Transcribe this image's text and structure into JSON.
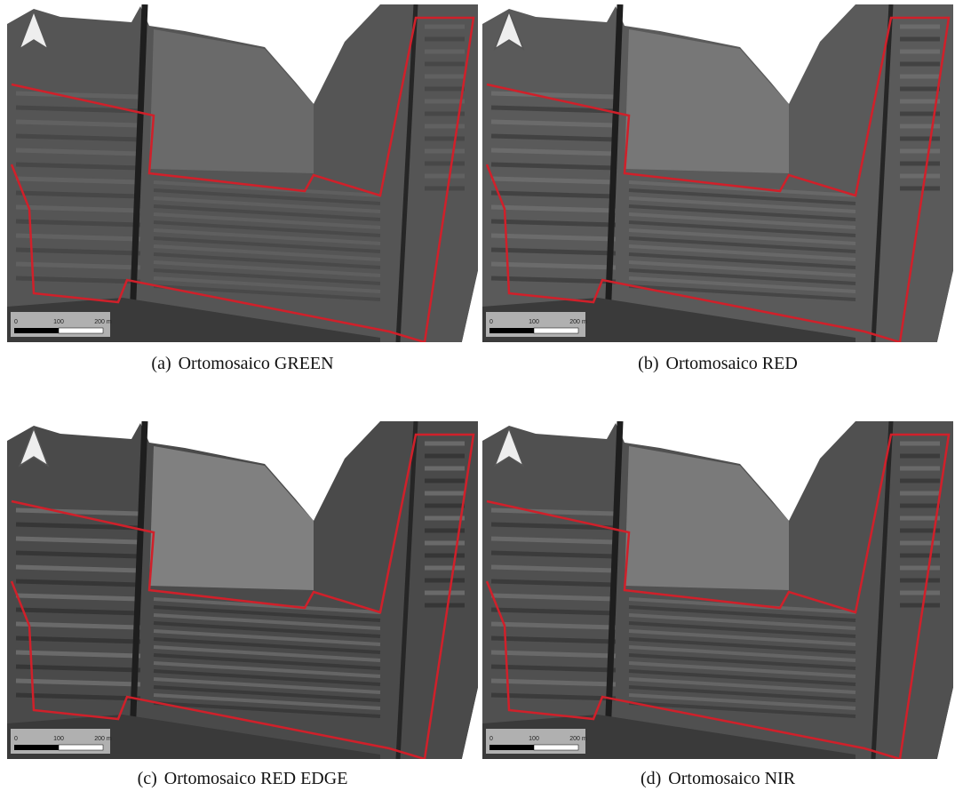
{
  "panels": [
    {
      "label": "(a)",
      "caption": "Ortomosaico GREEN",
      "scale_labels": [
        "0",
        "100",
        "200 m"
      ]
    },
    {
      "label": "(b)",
      "caption": "Ortomosaico RED",
      "scale_labels": [
        "0",
        "100",
        "200 m"
      ]
    },
    {
      "label": "(c)",
      "caption": "Ortomosaico RED EDGE",
      "scale_labels": [
        "0",
        "100",
        "200 m"
      ]
    },
    {
      "label": "(d)",
      "caption": "Ortomosaico NIR",
      "scale_labels": [
        "0",
        "100",
        "200 m"
      ]
    }
  ]
}
